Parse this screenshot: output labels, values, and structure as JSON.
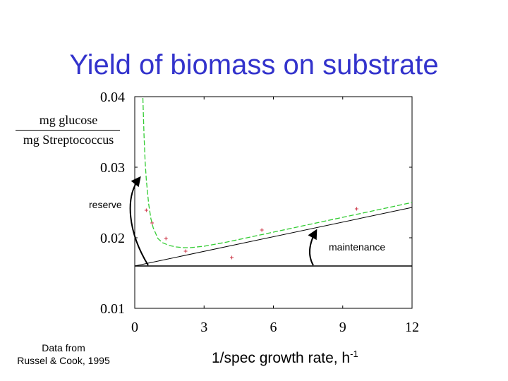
{
  "title": "Yield of biomass on substrate",
  "source": {
    "line1": "Data from",
    "line2": "Russel & Cook, 1995"
  },
  "chart_data": {
    "type": "scatter",
    "title": "Yield of biomass on substrate",
    "ylabel_numerator": "mg glucose",
    "ylabel_denominator": "mg Streptococcus",
    "xlabel_text": "1/spec growth rate, h",
    "xlabel_superscript": "-1",
    "xlim": [
      0,
      12
    ],
    "ylim": [
      0.01,
      0.04
    ],
    "xticks": [
      {
        "value": 0,
        "label": "0"
      },
      {
        "value": 3,
        "label": "3"
      },
      {
        "value": 6,
        "label": "6"
      },
      {
        "value": 9,
        "label": "9"
      },
      {
        "value": 12,
        "label": "12"
      }
    ],
    "yticks": [
      {
        "value": 0.01,
        "label": "0.01"
      },
      {
        "value": 0.02,
        "label": "0.02"
      },
      {
        "value": 0.03,
        "label": "0.03"
      },
      {
        "value": 0.04,
        "label": "0.04"
      }
    ],
    "points": [
      {
        "x": 0.5,
        "y": 0.0239
      },
      {
        "x": 0.75,
        "y": 0.0221
      },
      {
        "x": 1.35,
        "y": 0.0199
      },
      {
        "x": 2.2,
        "y": 0.0181
      },
      {
        "x": 4.2,
        "y": 0.0172
      },
      {
        "x": 5.5,
        "y": 0.0211
      },
      {
        "x": 9.6,
        "y": 0.0241
      }
    ],
    "fit_curve": {
      "style": "dashed",
      "color": "#33cc33",
      "x": [
        0.35,
        0.4,
        0.45,
        0.5,
        0.6,
        0.7,
        0.8,
        1.0,
        1.2,
        1.5,
        1.8,
        2.1,
        2.4,
        3,
        4,
        5,
        6,
        7,
        8,
        9,
        10,
        11,
        12
      ],
      "y": [
        0.0398,
        0.0346,
        0.0308,
        0.0282,
        0.0248,
        0.0227,
        0.0214,
        0.0199,
        0.0193,
        0.0189,
        0.0187,
        0.0186,
        0.0186,
        0.0188,
        0.0194,
        0.0201,
        0.0208,
        0.0215,
        0.0222,
        0.0229,
        0.0236,
        0.0243,
        0.025
      ]
    },
    "maintenance_line": {
      "x": [
        0,
        12
      ],
      "y": [
        0.016,
        0.0243
      ]
    },
    "baseline": {
      "x": [
        0,
        12
      ],
      "y": [
        0.016,
        0.016
      ]
    },
    "annotations": [
      {
        "text": "reserve"
      },
      {
        "text": "maintenance"
      }
    ]
  },
  "colors": {
    "title": "#3333cc",
    "points": "#cc3344",
    "fit_curve": "#33cc33",
    "axes": "#000000"
  }
}
